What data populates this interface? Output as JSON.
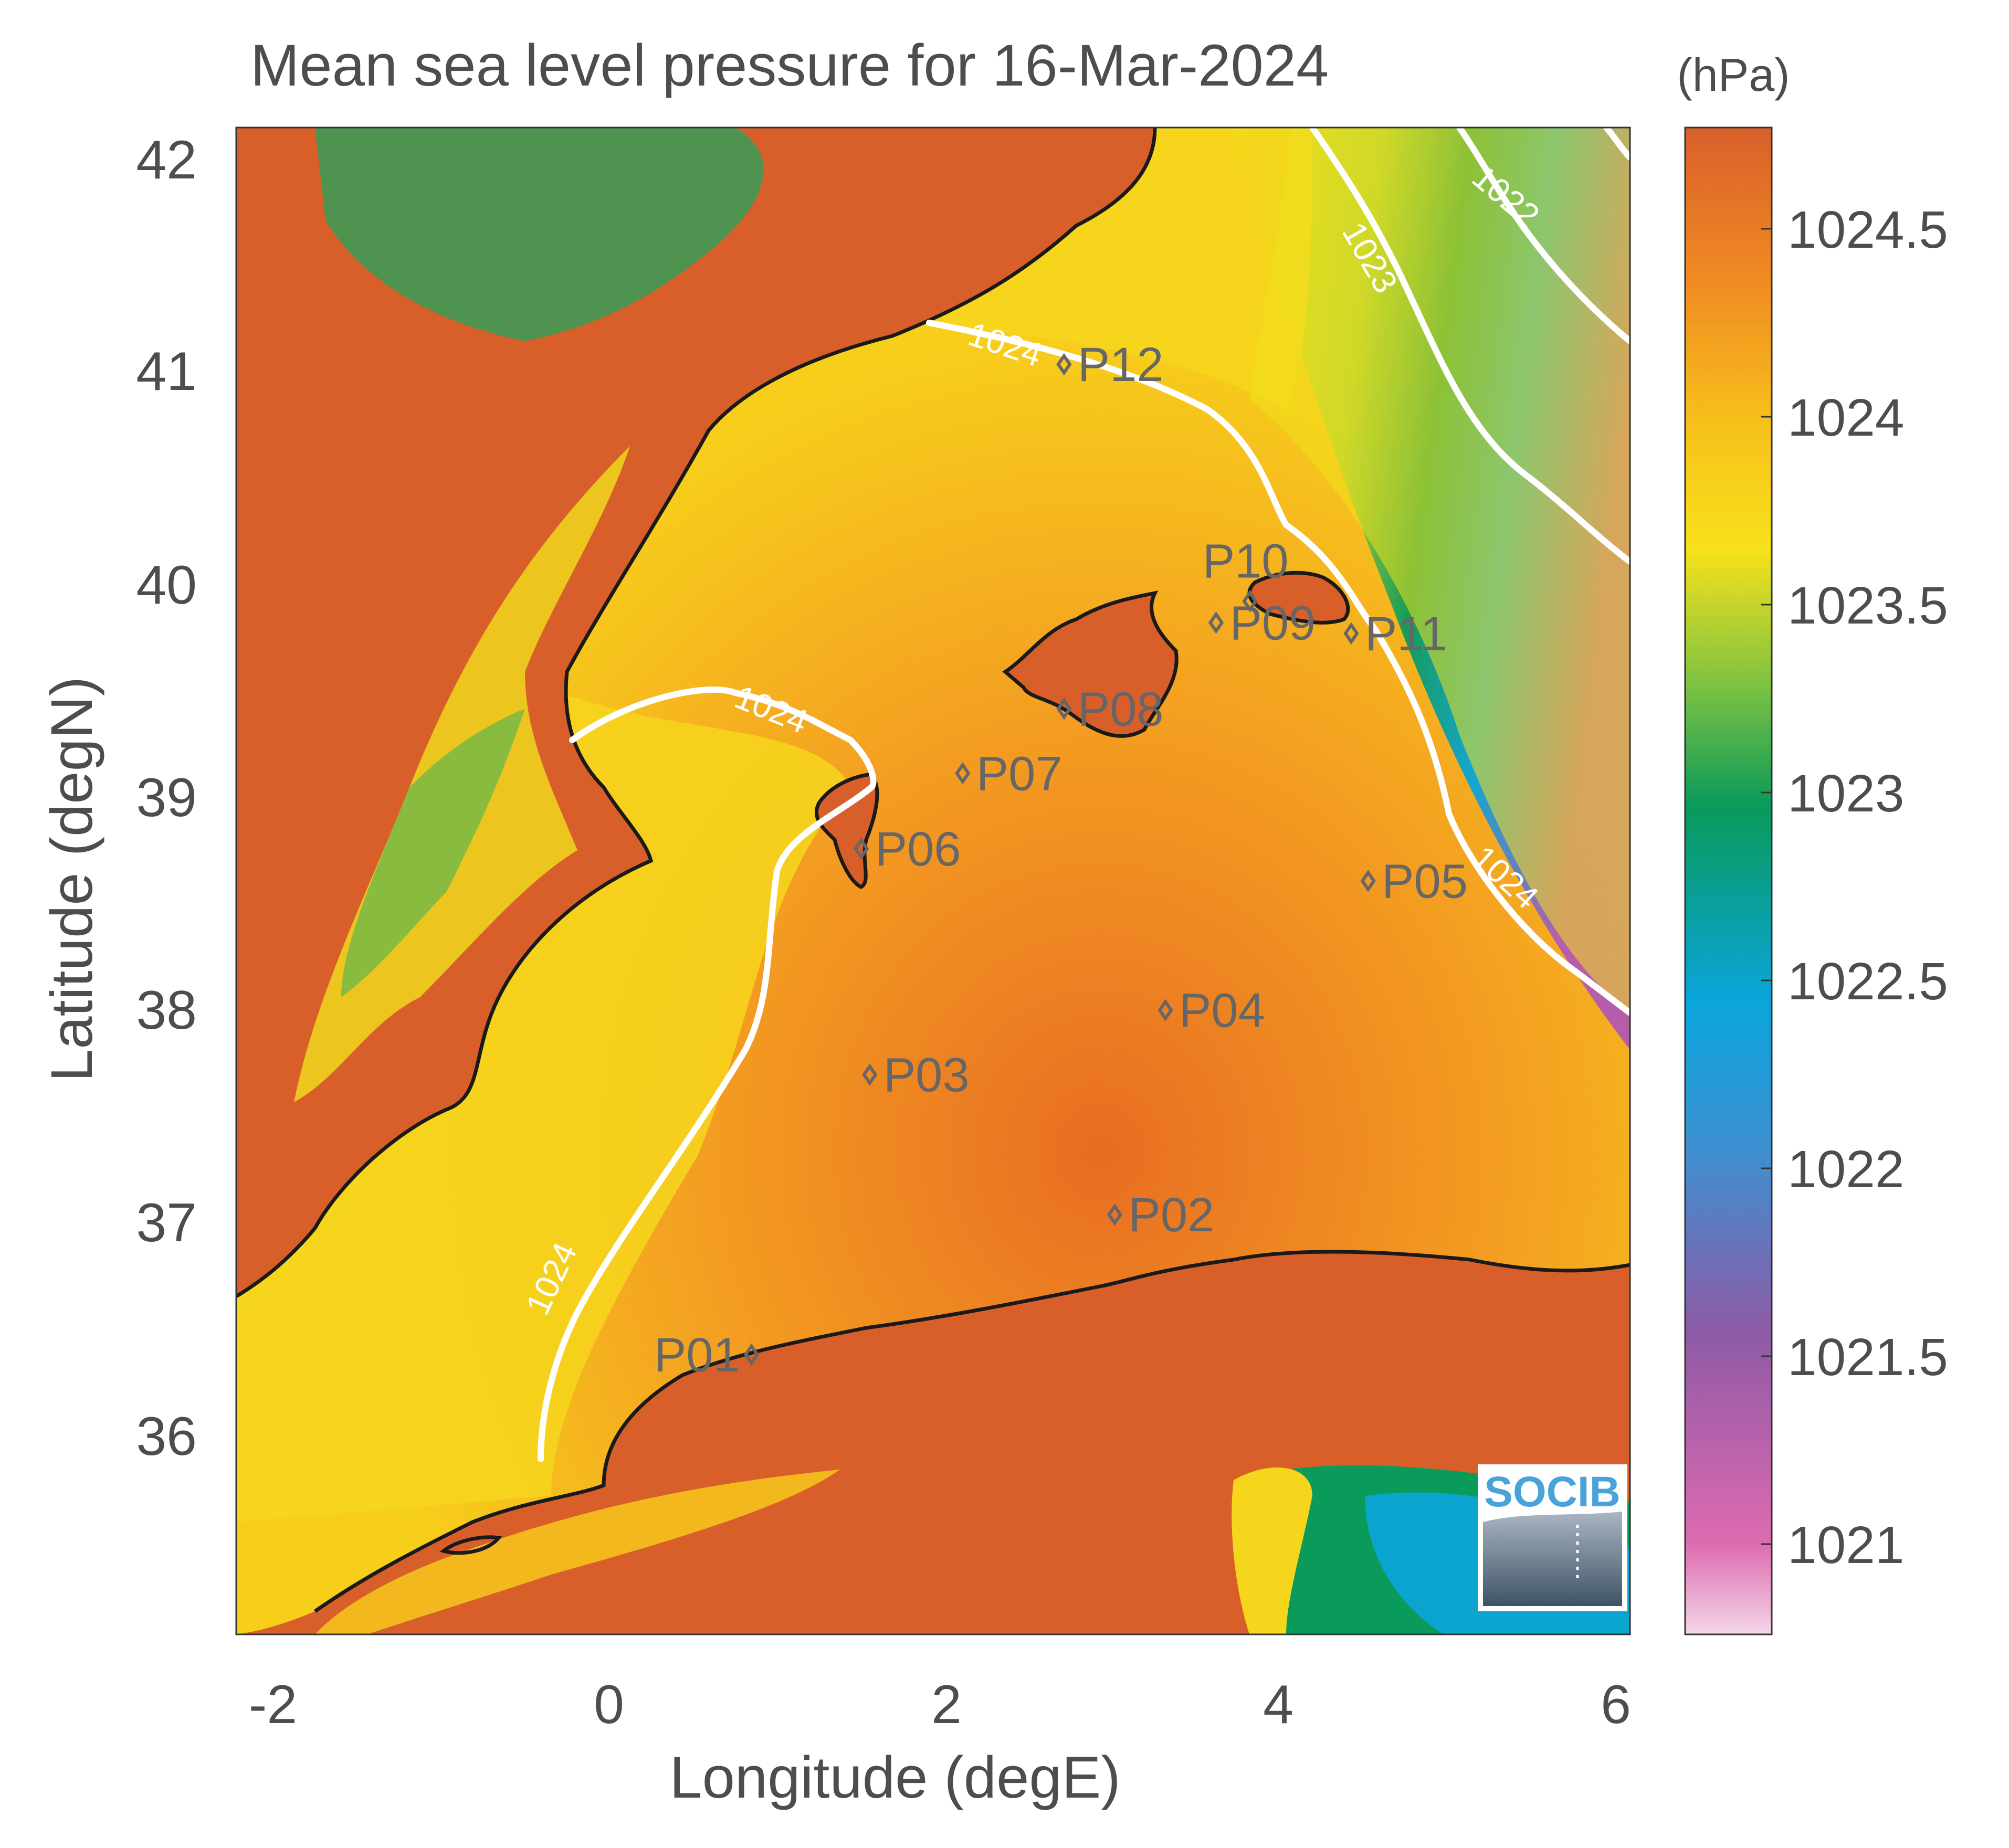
{
  "title": "Mean sea level pressure for 16-Mar-2024",
  "units": "(hPa)",
  "xlabel": "Longitude (degE)",
  "ylabel": "Latitude (degN)",
  "x_ticks": [
    "-2",
    "0",
    "2",
    "4",
    "6"
  ],
  "y_ticks": [
    "42",
    "41",
    "40",
    "39",
    "38",
    "37",
    "36"
  ],
  "colorbar": {
    "ticks": [
      "1024.5",
      "1024",
      "1023.5",
      "1023",
      "1022.5",
      "1022",
      "1021.5",
      "1021"
    ],
    "range": [
      1020.75,
      1024.75
    ]
  },
  "contour_labels": [
    "1024",
    "1024",
    "1024",
    "1024",
    "1023",
    "1022"
  ],
  "stations": [
    "P01",
    "P02",
    "P03",
    "P04",
    "P05",
    "P06",
    "P07",
    "P08",
    "P09",
    "P10",
    "P11",
    "P12"
  ],
  "logo": "SOCIB",
  "colors": {
    "high": "#d95f2a",
    "mid_high": "#f5a623",
    "mid": "#f7e11b",
    "green": "#0a9a5a",
    "blue": "#0aa5dc",
    "purple": "#8e5aa6",
    "low": "#f3c9e0",
    "coast": "#1a1a1a",
    "contour": "#ffffff",
    "station": "#666666"
  },
  "chart_data": {
    "type": "heatmap",
    "title": "Mean sea level pressure for 16-Mar-2024",
    "xlabel": "Longitude (degE)",
    "ylabel": "Latitude (degN)",
    "xlim": [
      -2.2,
      6.05
    ],
    "ylim": [
      35.2,
      42.2
    ],
    "colorbar_units": "hPa",
    "colorbar_range": [
      1020.75,
      1024.75
    ],
    "contour_levels": [
      1022,
      1023,
      1024
    ],
    "stations": [
      {
        "name": "P01",
        "lon": 0.85,
        "lat": 36.5
      },
      {
        "name": "P02",
        "lon": 3.0,
        "lat": 37.15
      },
      {
        "name": "P03",
        "lon": 1.55,
        "lat": 37.8
      },
      {
        "name": "P04",
        "lon": 3.3,
        "lat": 38.1
      },
      {
        "name": "P05",
        "lon": 4.5,
        "lat": 38.7
      },
      {
        "name": "P06",
        "lon": 1.5,
        "lat": 38.85
      },
      {
        "name": "P07",
        "lon": 2.1,
        "lat": 39.2
      },
      {
        "name": "P08",
        "lon": 2.7,
        "lat": 39.5
      },
      {
        "name": "P09",
        "lon": 3.6,
        "lat": 39.9
      },
      {
        "name": "P10",
        "lon": 3.8,
        "lat": 40.0
      },
      {
        "name": "P11",
        "lon": 4.4,
        "lat": 39.85
      },
      {
        "name": "P12",
        "lon": 2.7,
        "lat": 41.1
      }
    ]
  }
}
